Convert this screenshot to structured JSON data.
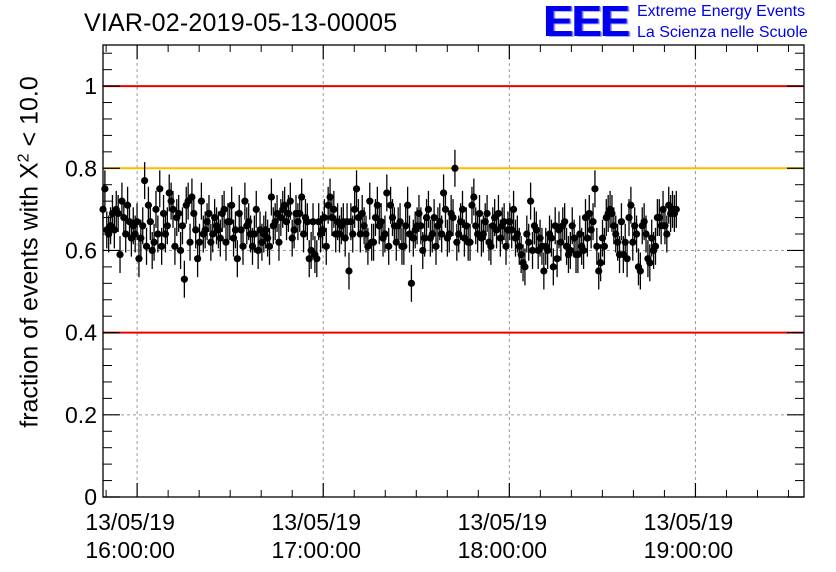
{
  "title": "VIAR-02-2019-05-13-00005",
  "logo": {
    "mark": "EEE",
    "line1": "Extreme Energy Events",
    "line2": "La Scienza nelle Scuole",
    "color": "#0000ee"
  },
  "chart_data": {
    "type": "scatter",
    "title": "VIAR-02-2019-05-13-00005",
    "ylabel_prefix": "fraction of events with ",
    "ylabel_symbol": "X",
    "ylabel_exp": "2",
    "ylabel_suffix": " < 10.0",
    "xlabel": "",
    "x_axis_type": "time",
    "xlim": [
      "15:49:00",
      "19:35:00"
    ],
    "ylim": [
      0,
      1.1
    ],
    "y_ticks": [
      {
        "value": 0,
        "label": "0"
      },
      {
        "value": 0.2,
        "label": "0.2"
      },
      {
        "value": 0.4,
        "label": "0.4"
      },
      {
        "value": 0.6,
        "label": "0.6"
      },
      {
        "value": 0.8,
        "label": "0.8"
      },
      {
        "value": 1,
        "label": "1"
      }
    ],
    "x_ticks": [
      {
        "time": "16:00:00",
        "date": "13/05/19"
      },
      {
        "time": "17:00:00",
        "date": "13/05/19"
      },
      {
        "time": "18:00:00",
        "date": "13/05/19"
      },
      {
        "time": "19:00:00",
        "date": "13/05/19"
      }
    ],
    "grid": true,
    "reference_lines": [
      {
        "y": 1.0,
        "color": "#ee0000"
      },
      {
        "y": 0.8,
        "color": "#ffbb00"
      },
      {
        "y": 0.4,
        "color": "#ee0000"
      }
    ],
    "error_bar": 0.045,
    "series": [
      {
        "x_start": "15:49:00",
        "x_step_minutes": 0.61,
        "marker_color": "#000000",
        "values": [
          0.7,
          0.75,
          0.65,
          0.64,
          0.66,
          0.69,
          0.65,
          0.7,
          0.69,
          0.59,
          0.72,
          0.68,
          0.64,
          0.71,
          0.67,
          0.63,
          0.66,
          0.64,
          0.67,
          0.58,
          0.63,
          0.66,
          0.77,
          0.61,
          0.71,
          0.67,
          0.6,
          0.62,
          0.7,
          0.64,
          0.75,
          0.61,
          0.69,
          0.64,
          0.66,
          0.74,
          0.72,
          0.7,
          0.61,
          0.68,
          0.69,
          0.6,
          0.66,
          0.53,
          0.71,
          0.72,
          0.62,
          0.73,
          0.69,
          0.65,
          0.58,
          0.62,
          0.72,
          0.64,
          0.65,
          0.67,
          0.69,
          0.62,
          0.64,
          0.68,
          0.66,
          0.65,
          0.63,
          0.69,
          0.7,
          0.62,
          0.67,
          0.67,
          0.71,
          0.63,
          0.65,
          0.58,
          0.69,
          0.65,
          0.61,
          0.72,
          0.66,
          0.67,
          0.64,
          0.61,
          0.64,
          0.7,
          0.6,
          0.65,
          0.62,
          0.64,
          0.65,
          0.63,
          0.61,
          0.73,
          0.66,
          0.67,
          0.69,
          0.62,
          0.68,
          0.7,
          0.71,
          0.67,
          0.69,
          0.72,
          0.63,
          0.65,
          0.69,
          0.67,
          0.69,
          0.73,
          0.64,
          0.68,
          0.67,
          0.58,
          0.6,
          0.67,
          0.59,
          0.58,
          0.67,
          0.64,
          0.65,
          0.68,
          0.61,
          0.71,
          0.73,
          0.68,
          0.7,
          0.64,
          0.67,
          0.64,
          0.66,
          0.67,
          0.63,
          0.67,
          0.55,
          0.67,
          0.64,
          0.7,
          0.75,
          0.68,
          0.64,
          0.69,
          0.66,
          0.64,
          0.61,
          0.72,
          0.62,
          0.62,
          0.68,
          0.71,
          0.66,
          0.67,
          0.63,
          0.64,
          0.74,
          0.61,
          0.71,
          0.68,
          0.66,
          0.62,
          0.66,
          0.67,
          0.61,
          0.61,
          0.66,
          0.71,
          0.64,
          0.52,
          0.63,
          0.65,
          0.66,
          0.69,
          0.66,
          0.6,
          0.63,
          0.68,
          0.7,
          0.63,
          0.64,
          0.68,
          0.61,
          0.66,
          0.67,
          0.64,
          0.74,
          0.7,
          0.63,
          0.64,
          0.69,
          0.68,
          0.8,
          0.62,
          0.64,
          0.67,
          0.7,
          0.63,
          0.66,
          0.62,
          0.62,
          0.71,
          0.73,
          0.66,
          0.64,
          0.69,
          0.63,
          0.64,
          0.67,
          0.69,
          0.62,
          0.61,
          0.66,
          0.68,
          0.65,
          0.69,
          0.63,
          0.66,
          0.67,
          0.61,
          0.65,
          0.67,
          0.65,
          0.7,
          0.63,
          0.64,
          0.61,
          0.59,
          0.57,
          0.56,
          0.64,
          0.62,
          0.72,
          0.6,
          0.66,
          0.65,
          0.6,
          0.63,
          0.61,
          0.55,
          0.61,
          0.6,
          0.64,
          0.63,
          0.56,
          0.66,
          0.58,
          0.65,
          0.62,
          0.66,
          0.67,
          0.61,
          0.59,
          0.6,
          0.66,
          0.63,
          0.59,
          0.59,
          0.64,
          0.61,
          0.6,
          0.68,
          0.63,
          0.69,
          0.65,
          0.67,
          0.75,
          0.61,
          0.55,
          0.57,
          0.63,
          0.61,
          0.68,
          0.69,
          0.7,
          0.69,
          0.66,
          0.64,
          0.62,
          0.59,
          0.67,
          0.59,
          0.62,
          0.58,
          0.68,
          0.71,
          0.62,
          0.66,
          0.64,
          0.56,
          0.55,
          0.66,
          0.67,
          0.64,
          0.58,
          0.57,
          0.63,
          0.6,
          0.61,
          0.68,
          0.68,
          0.66,
          0.7,
          0.66,
          0.64,
          0.71,
          0.69,
          0.7,
          0.69,
          0.7
        ]
      }
    ]
  }
}
